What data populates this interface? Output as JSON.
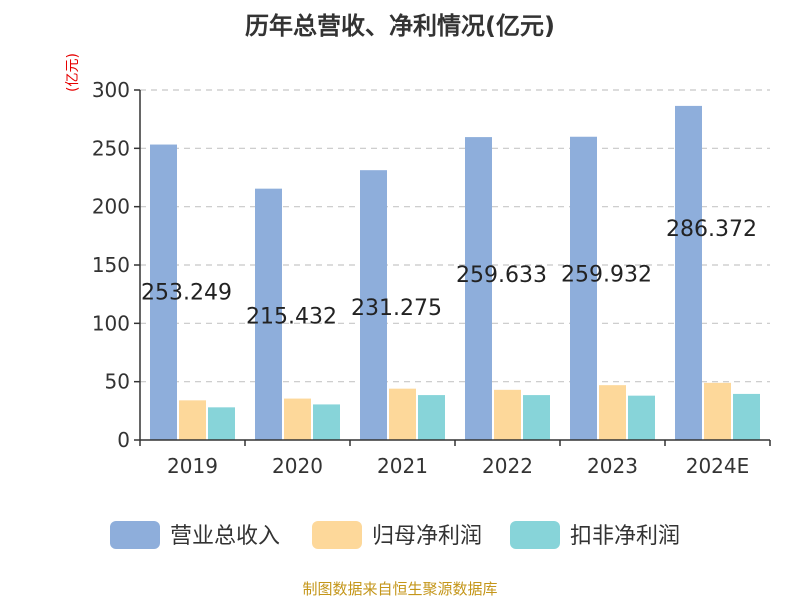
{
  "chart_data": {
    "type": "bar",
    "title": "历年总营收、净利情况(亿元)",
    "y_unit": "(亿元)",
    "categories": [
      "2019",
      "2020",
      "2021",
      "2022",
      "2023",
      "2024E"
    ],
    "ylim": [
      0,
      300
    ],
    "yticks": [
      0,
      50,
      100,
      150,
      200,
      250,
      300
    ],
    "grid": true,
    "legend_position": "bottom",
    "series": [
      {
        "name": "营业总收入",
        "color": "#8eaedb",
        "values": [
          253.249,
          215.432,
          231.275,
          259.633,
          259.932,
          286.372
        ],
        "labels": [
          "253.249",
          "215.432",
          "231.275",
          "259.633",
          "259.932",
          "286.372"
        ]
      },
      {
        "name": "归母净利润",
        "color": "#fdd89a",
        "values": [
          34,
          35.5,
          44,
          43,
          47,
          49
        ]
      },
      {
        "name": "扣非净利润",
        "color": "#87d4d9",
        "values": [
          28,
          30.5,
          38.5,
          38.5,
          38,
          39.5
        ]
      }
    ]
  },
  "footer": {
    "source": "制图数据来自恒生聚源数据库"
  }
}
